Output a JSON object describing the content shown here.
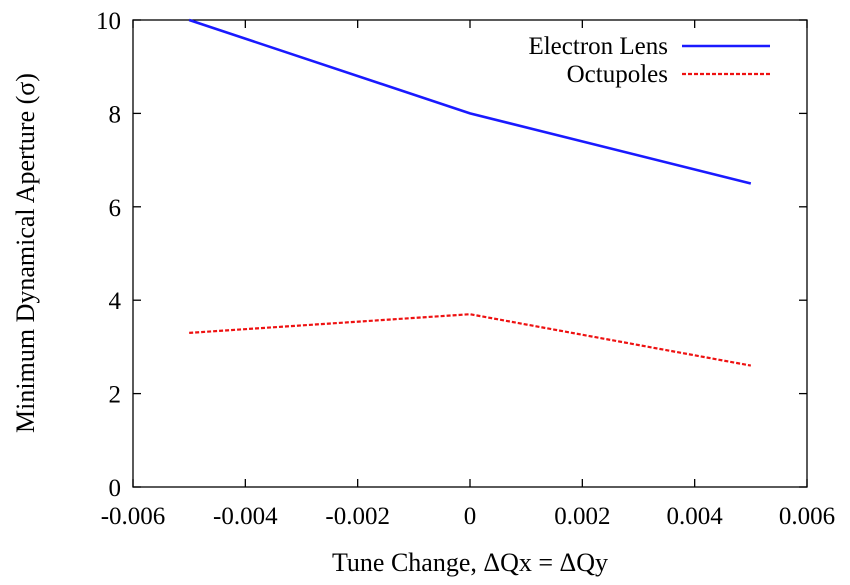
{
  "chart_data": {
    "type": "line",
    "xlabel": "Tune Change, ΔQx = ΔQy",
    "ylabel": "Minimum Dynamical Aperture (σ)",
    "xlim": [
      -0.006,
      0.006
    ],
    "ylim": [
      0,
      10
    ],
    "x_ticks": [
      "-0.006",
      "-0.004",
      "-0.002",
      "0",
      "0.002",
      "0.004",
      "0.006"
    ],
    "y_ticks": [
      "0",
      "2",
      "4",
      "6",
      "8",
      "10"
    ],
    "grid": false,
    "legend_position": "top-right",
    "series": [
      {
        "name": "Electron Lens",
        "color": "#1a1aff",
        "style": "solid",
        "x": [
          -0.005,
          0,
          0.005
        ],
        "y": [
          10,
          8,
          6.5
        ]
      },
      {
        "name": "Octupoles",
        "color": "#ee1111",
        "style": "dashed",
        "x": [
          -0.005,
          0,
          0.005
        ],
        "y": [
          3.3,
          3.7,
          2.6
        ]
      }
    ]
  }
}
